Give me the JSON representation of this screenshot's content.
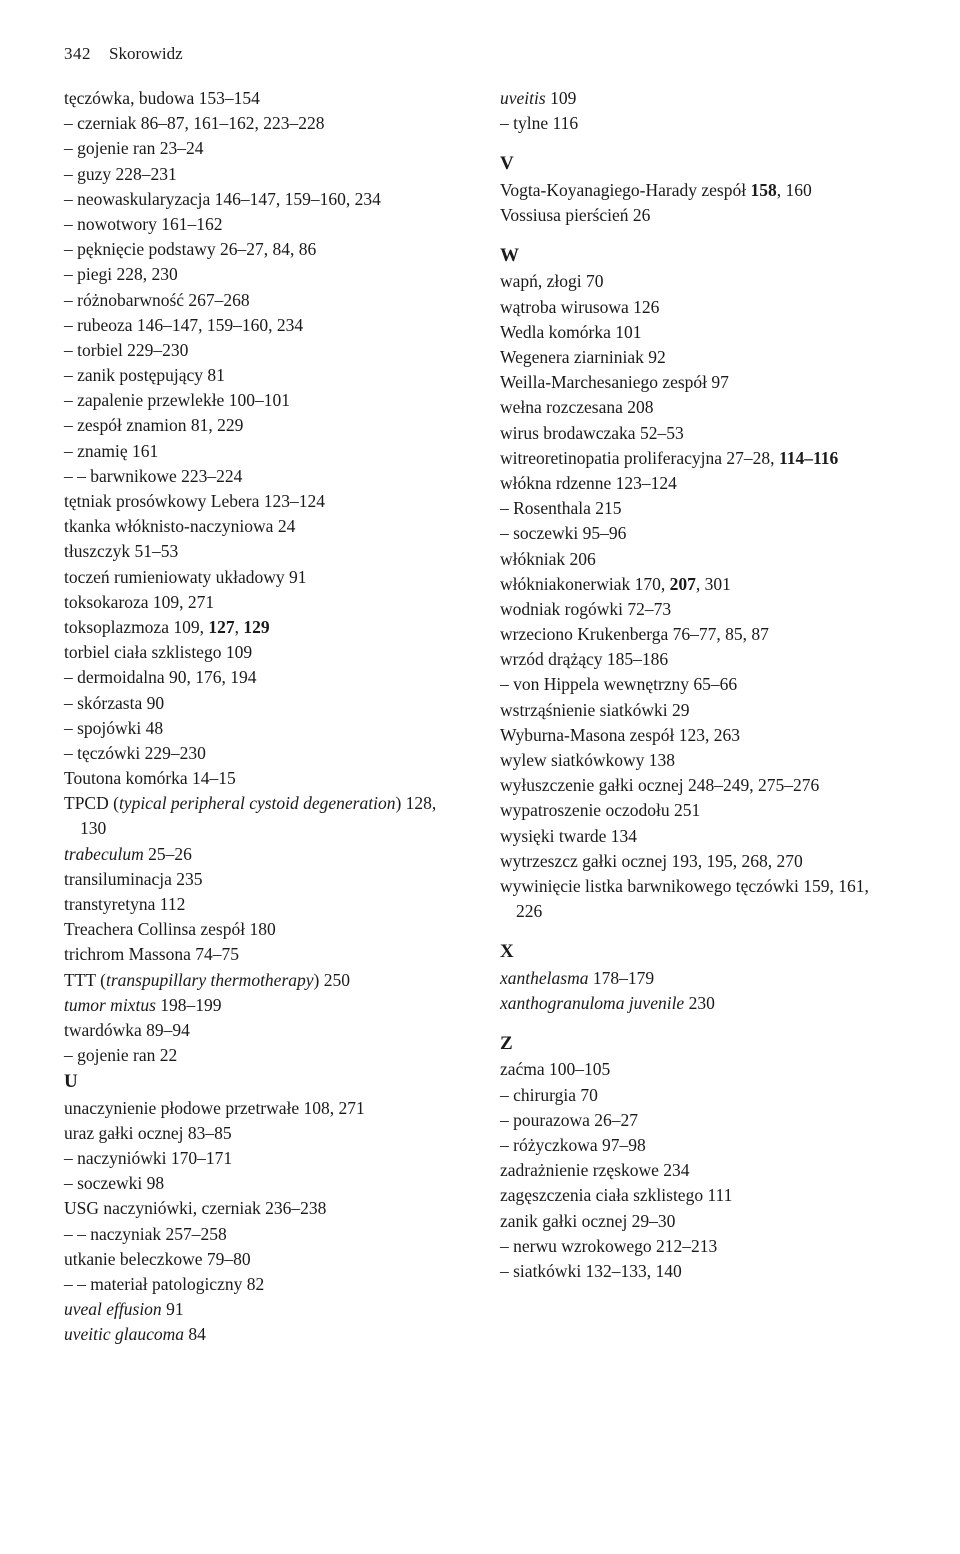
{
  "page_number": "342",
  "header_title": "Skorowidz",
  "font": {
    "family": "serif",
    "body_size_pt": 13,
    "line_height": 1.44
  },
  "colors": {
    "background": "#ffffff",
    "text": "#1a1a1a"
  },
  "left_column": [
    {
      "text": "tęczówka, budowa 153–154",
      "indent": 0
    },
    {
      "text": "– czerniak 86–87, 161–162, 223–228",
      "indent": 0
    },
    {
      "text": "– gojenie ran 23–24",
      "indent": 0
    },
    {
      "text": "– guzy 228–231",
      "indent": 0
    },
    {
      "text": "– neowaskularyzacja 146–147, 159–160, 234",
      "indent": 0
    },
    {
      "text": "– nowotwory 161–162",
      "indent": 0
    },
    {
      "text": "– pęknięcie podstawy 26–27, 84, 86",
      "indent": 0
    },
    {
      "text": "– piegi 228, 230",
      "indent": 0
    },
    {
      "text": "– różnobarwność 267–268",
      "indent": 0
    },
    {
      "text": "– rubeoza 146–147, 159–160, 234",
      "indent": 0
    },
    {
      "text": "– torbiel 229–230",
      "indent": 0
    },
    {
      "text": "– zanik postępujący 81",
      "indent": 0
    },
    {
      "text": "– zapalenie przewlekłe 100–101",
      "indent": 0
    },
    {
      "text": "– zespół znamion 81, 229",
      "indent": 0
    },
    {
      "text": "– znamię 161",
      "indent": 0
    },
    {
      "text": "– – barwnikowe 223–224",
      "indent": 0
    },
    {
      "text": "tętniak prosówkowy Lebera 123–124",
      "indent": 0
    },
    {
      "text": "tkanka włóknisto-naczyniowa 24",
      "indent": 0
    },
    {
      "text": "tłuszczyk 51–53",
      "indent": 0
    },
    {
      "text": "toczeń rumieniowaty układowy 91",
      "indent": 0
    },
    {
      "text": "toksokaroza 109, 271",
      "indent": 0
    },
    {
      "html": "toksoplazmoza 109, <b>127</b>, <b>129</b>",
      "indent": 0
    },
    {
      "text": "torbiel ciała szklistego 109",
      "indent": 0
    },
    {
      "text": "– dermoidalna 90, 176, 194",
      "indent": 0
    },
    {
      "text": "– skórzasta 90",
      "indent": 0
    },
    {
      "text": "– spojówki 48",
      "indent": 0
    },
    {
      "text": "– tęczówki 229–230",
      "indent": 0
    },
    {
      "text": "Toutona komórka 14–15",
      "indent": 0
    },
    {
      "html": "TPCD (<i>typical peripheral cystoid degeneration</i>) 128, 130",
      "indent": 0
    },
    {
      "html": "<i>trabeculum</i> 25–26",
      "indent": 0
    },
    {
      "text": "transiluminacja 235",
      "indent": 0
    },
    {
      "text": "transtyretyna 112",
      "indent": 0
    },
    {
      "text": "Treachera Collinsa zespół 180",
      "indent": 0
    },
    {
      "text": "trichrom Massona 74–75",
      "indent": 0
    },
    {
      "html": "TTT (<i>transpupillary thermotherapy</i>) 250",
      "indent": 0
    },
    {
      "html": "<i>tumor mixtus</i> 198–199",
      "indent": 0
    },
    {
      "text": "twardówka 89–94",
      "indent": 0
    },
    {
      "text": "– gojenie ran 22",
      "indent": 0
    },
    {
      "section": "U"
    },
    {
      "text": "unaczynienie płodowe przetrwałe 108, 271",
      "indent": 0
    },
    {
      "text": "uraz gałki ocznej 83–85",
      "indent": 0
    },
    {
      "text": "– naczyniówki 170–171",
      "indent": 0
    },
    {
      "text": "– soczewki 98",
      "indent": 0
    },
    {
      "text": "USG naczyniówki, czerniak 236–238",
      "indent": 0
    },
    {
      "text": "– – naczyniak 257–258",
      "indent": 0
    },
    {
      "text": "utkanie beleczkowe 79–80",
      "indent": 0
    },
    {
      "text": "– – materiał patologiczny 82",
      "indent": 0
    },
    {
      "html": "<i>uveal effusion</i> 91",
      "indent": 0
    },
    {
      "html": "<i>uveitic glaucoma</i> 84",
      "indent": 0
    }
  ],
  "right_column": [
    {
      "html": "<i>uveitis</i> 109",
      "indent": 0
    },
    {
      "text": "– tylne 116",
      "indent": 0
    },
    {
      "section": "V"
    },
    {
      "html": "Vogta-Koyanagiego-Harady zespół <b>158</b>, 160",
      "indent": 0
    },
    {
      "text": "Vossiusa pierścień 26",
      "indent": 0
    },
    {
      "section": "W"
    },
    {
      "text": "wapń, złogi 70",
      "indent": 0
    },
    {
      "text": "wątroba wirusowa 126",
      "indent": 0
    },
    {
      "text": "Wedla komórka 101",
      "indent": 0
    },
    {
      "text": "Wegenera ziarniniak 92",
      "indent": 0
    },
    {
      "text": "Weilla-Marchesaniego zespół 97",
      "indent": 0
    },
    {
      "text": "wełna rozczesana 208",
      "indent": 0
    },
    {
      "text": "wirus brodawczaka 52–53",
      "indent": 0
    },
    {
      "html": "witreoretinopatia proliferacyjna 27–28, <b>114–116</b>",
      "indent": 0
    },
    {
      "text": "włókna rdzenne 123–124",
      "indent": 0
    },
    {
      "text": "– Rosenthala 215",
      "indent": 0
    },
    {
      "text": "– soczewki 95–96",
      "indent": 0
    },
    {
      "text": "włókniak 206",
      "indent": 0
    },
    {
      "html": "włókniakonerwiak 170, <b>207</b>, 301",
      "indent": 0
    },
    {
      "text": "wodniak rogówki 72–73",
      "indent": 0
    },
    {
      "text": "wrzeciono Krukenberga 76–77, 85, 87",
      "indent": 0
    },
    {
      "text": "wrzód drążący 185–186",
      "indent": 0
    },
    {
      "text": "– von Hippela wewnętrzny 65–66",
      "indent": 0
    },
    {
      "text": "wstrząśnienie siatkówki 29",
      "indent": 0
    },
    {
      "text": "Wyburna-Masona zespół 123, 263",
      "indent": 0
    },
    {
      "text": "wylew siatkówkowy 138",
      "indent": 0
    },
    {
      "text": "wyłuszczenie gałki ocznej 248–249, 275–276",
      "indent": 0
    },
    {
      "text": "wypatroszenie oczodołu 251",
      "indent": 0
    },
    {
      "text": "wysięki twarde 134",
      "indent": 0
    },
    {
      "text": "wytrzeszcz gałki ocznej 193, 195, 268, 270",
      "indent": 0
    },
    {
      "text": "wywinięcie listka barwnikowego tęczówki 159, 161, 226",
      "indent": 0
    },
    {
      "section": "X"
    },
    {
      "html": "<i>xanthelasma</i> 178–179",
      "indent": 0
    },
    {
      "html": "<i>xanthogranuloma juvenile</i> 230",
      "indent": 0
    },
    {
      "section": "Z"
    },
    {
      "text": "zaćma 100–105",
      "indent": 0
    },
    {
      "text": "– chirurgia 70",
      "indent": 0
    },
    {
      "text": "– pourazowa 26–27",
      "indent": 0
    },
    {
      "text": "– różyczkowa 97–98",
      "indent": 0
    },
    {
      "text": "zadrażnienie rzęskowe 234",
      "indent": 0
    },
    {
      "text": "zagęszczenia ciała szklistego 111",
      "indent": 0
    },
    {
      "text": "zanik gałki ocznej 29–30",
      "indent": 0
    },
    {
      "text": "– nerwu wzrokowego 212–213",
      "indent": 0
    },
    {
      "text": "– siatkówki 132–133, 140",
      "indent": 0
    }
  ]
}
